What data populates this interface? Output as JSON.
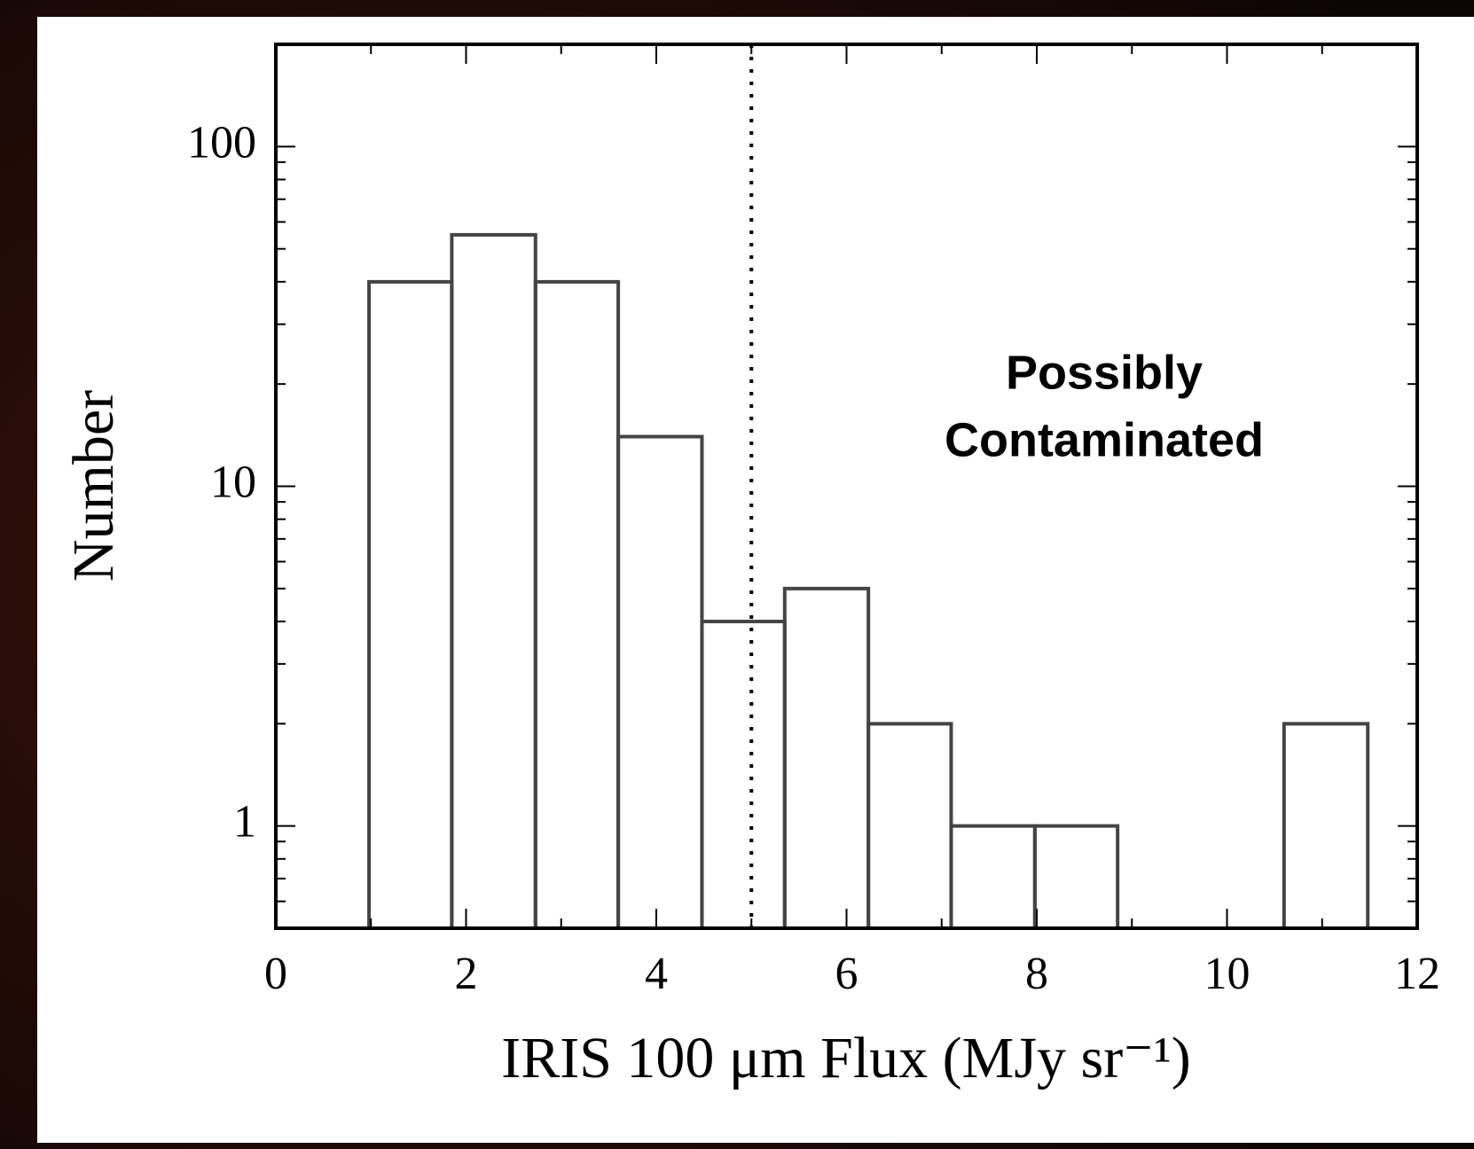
{
  "chart_data": {
    "type": "histogram",
    "bins": [
      0.98,
      1.85,
      2.73,
      3.6,
      4.48,
      5.35,
      6.23,
      7.1,
      7.98,
      8.85,
      9.73,
      10.6,
      11.48
    ],
    "values": [
      40,
      55,
      40,
      14,
      4,
      5,
      2,
      1,
      1,
      0,
      0,
      2
    ],
    "color": "#444444",
    "xlabel": "IRIS 100 μm Flux (MJy sr⁻¹)",
    "ylabel": "Number",
    "xlim": [
      0,
      12
    ],
    "xticks": [
      0,
      2,
      4,
      6,
      8,
      10,
      12
    ],
    "xminor_ticks": [
      1,
      3,
      5,
      7,
      9,
      11
    ],
    "ylim": [
      0.5,
      200
    ],
    "yticks": [
      1,
      10,
      100
    ],
    "yminor_ticks": [
      0.5,
      0.6,
      0.7,
      0.8,
      0.9,
      2,
      3,
      4,
      5,
      6,
      7,
      8,
      9,
      20,
      30,
      40,
      50,
      60,
      70,
      80,
      90,
      200
    ],
    "yscale": "log",
    "vline": {
      "x": 5,
      "style": "dotted"
    },
    "annotation": {
      "lines": [
        "Possibly",
        "Contaminated"
      ],
      "color": "#ff2a00"
    }
  }
}
